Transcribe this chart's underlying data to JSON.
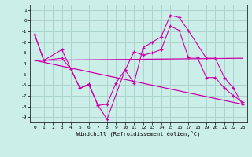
{
  "xlabel": "Windchill (Refroidissement éolien,°C)",
  "background_color": "#cceee8",
  "grid_color": "#aad4ce",
  "line_color": "#cc00aa",
  "xlim": [
    -0.5,
    23.5
  ],
  "ylim": [
    -9.5,
    1.5
  ],
  "yticks": [
    1,
    0,
    -1,
    -2,
    -3,
    -4,
    -5,
    -6,
    -7,
    -8,
    -9
  ],
  "xticks": [
    0,
    1,
    2,
    3,
    4,
    5,
    6,
    7,
    8,
    9,
    10,
    11,
    12,
    13,
    14,
    15,
    16,
    17,
    18,
    19,
    20,
    21,
    22,
    23
  ],
  "series": [
    {
      "x": [
        0,
        1,
        3,
        4,
        5,
        6,
        7,
        8,
        10,
        11,
        12,
        13,
        14,
        15,
        16,
        17,
        19,
        20,
        21,
        22,
        23
      ],
      "y": [
        -1.3,
        -3.7,
        -2.7,
        -4.5,
        -6.3,
        -5.9,
        -7.9,
        -9.2,
        -4.6,
        -5.8,
        -2.5,
        -2.0,
        -1.5,
        0.5,
        0.3,
        -0.9,
        -3.5,
        -3.5,
        -5.3,
        -6.3,
        -7.8
      ],
      "marker": true
    },
    {
      "x": [
        0,
        1,
        3,
        4,
        5,
        6,
        7,
        8,
        9,
        10,
        11,
        12,
        13,
        14,
        15,
        16,
        17,
        18,
        19,
        20,
        21,
        22,
        23
      ],
      "y": [
        -1.3,
        -3.7,
        -3.5,
        -4.5,
        -6.3,
        -6.0,
        -7.9,
        -7.8,
        -5.8,
        -4.6,
        -2.9,
        -3.2,
        -3.0,
        -2.7,
        -0.5,
        -0.9,
        -3.4,
        -3.4,
        -5.3,
        -5.3,
        -6.3,
        -7.0,
        -7.6
      ],
      "marker": true
    },
    {
      "x": [
        0,
        23
      ],
      "y": [
        -3.7,
        -3.5
      ],
      "marker": false
    },
    {
      "x": [
        0,
        23
      ],
      "y": [
        -3.7,
        -7.8
      ],
      "marker": false
    }
  ]
}
